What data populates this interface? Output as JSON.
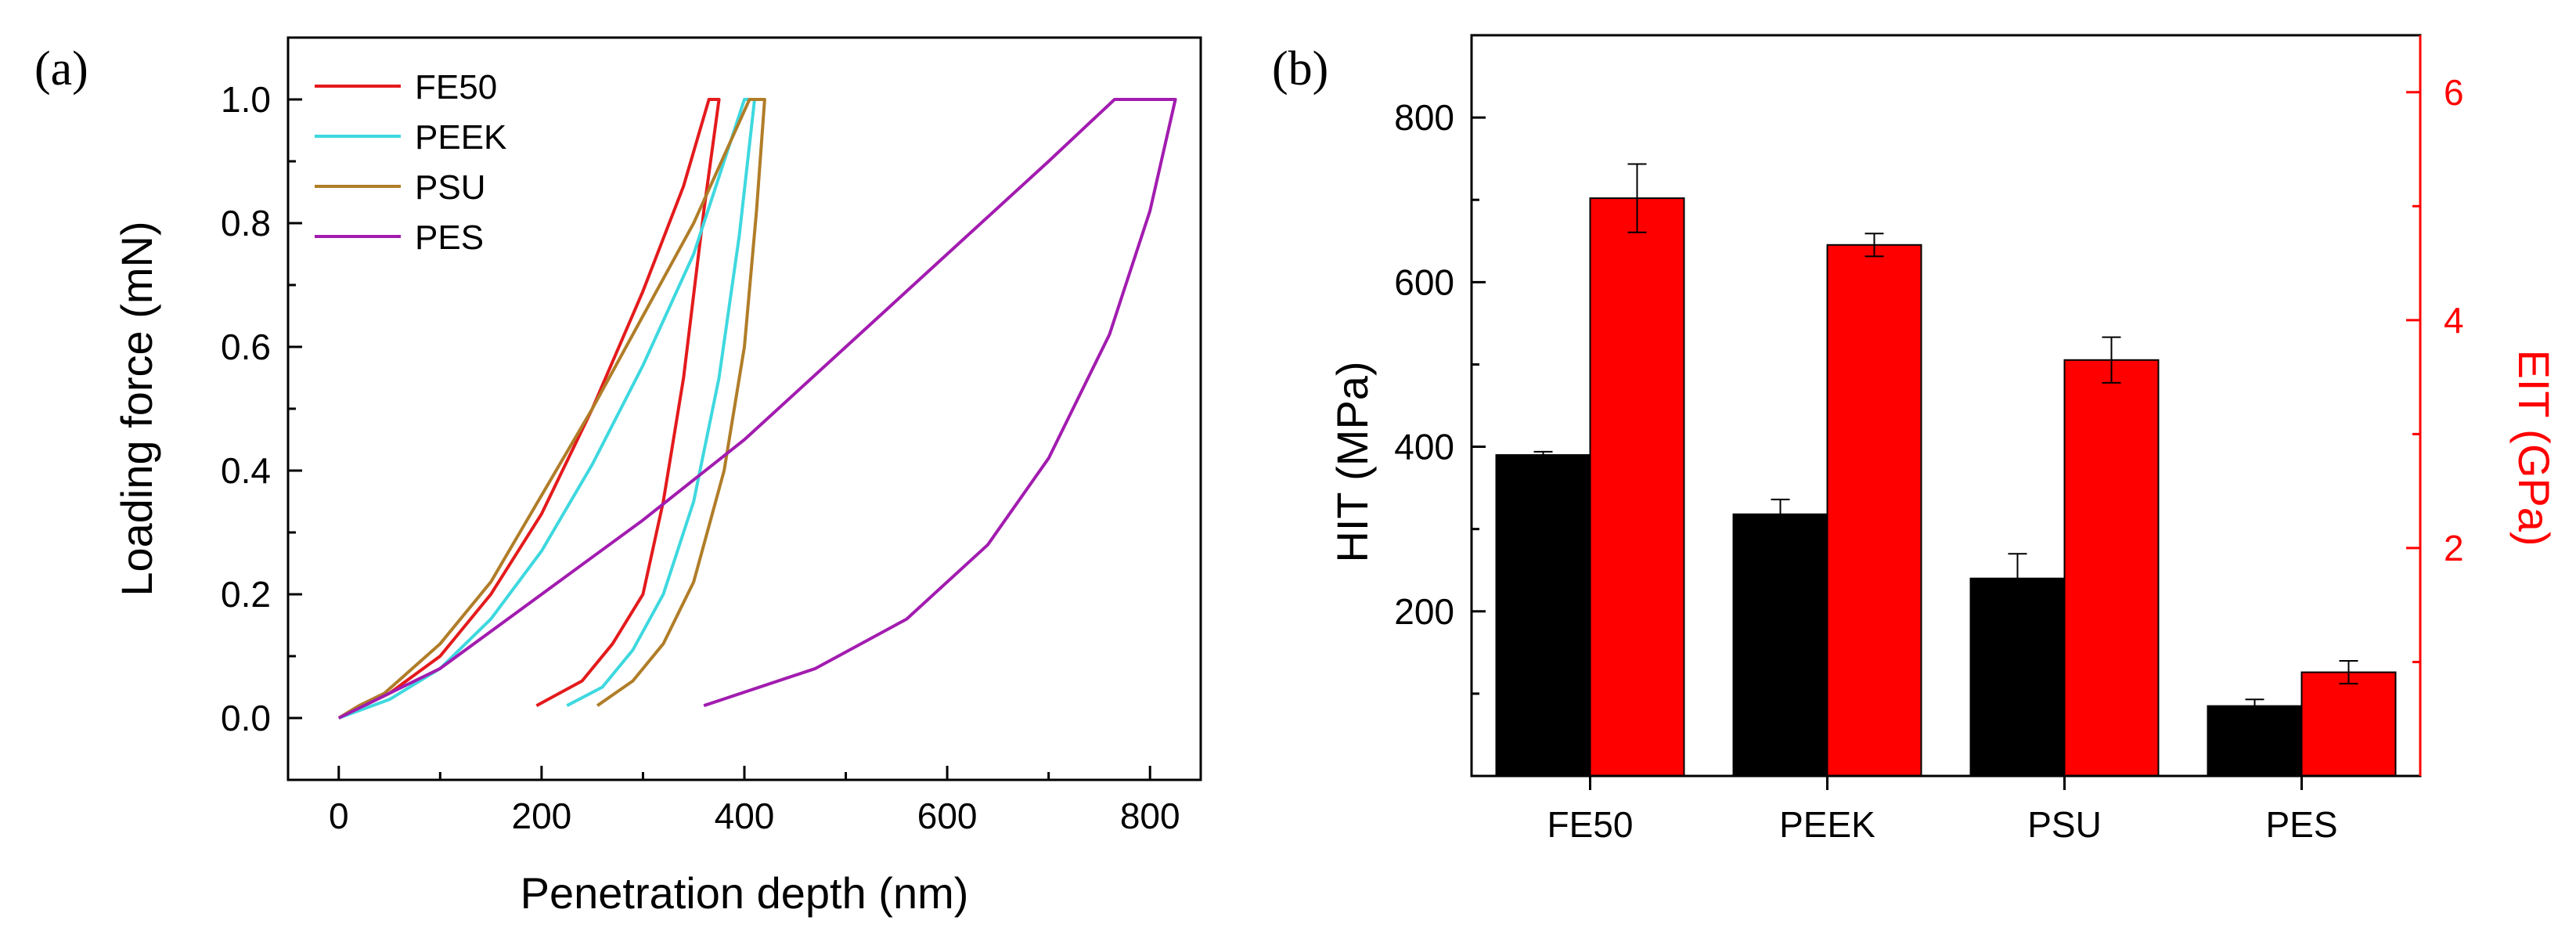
{
  "panels": {
    "a": {
      "label": "(a)",
      "chart_data": {
        "type": "line",
        "title": "",
        "xlabel": "Penetration depth (nm)",
        "ylabel": "Loading force (mN)",
        "xlim": [
          -50,
          850
        ],
        "ylim": [
          -0.1,
          1.1
        ],
        "xticks": [
          0,
          200,
          400,
          600,
          800
        ],
        "xtick_labels": [
          "0",
          "200",
          "400",
          "600",
          "800"
        ],
        "yticks": [
          0.0,
          0.2,
          0.4,
          0.6,
          0.8,
          1.0
        ],
        "ytick_labels": [
          "0.0",
          "0.2",
          "0.4",
          "0.6",
          "0.8",
          "1.0"
        ],
        "legend_position": "top-left",
        "series": [
          {
            "name": "FE50",
            "color": "#e41a1c",
            "loading": [
              [
                0,
                0
              ],
              [
                50,
                0.04
              ],
              [
                100,
                0.1
              ],
              [
                150,
                0.2
              ],
              [
                200,
                0.33
              ],
              [
                250,
                0.5
              ],
              [
                300,
                0.69
              ],
              [
                340,
                0.86
              ],
              [
                365,
                1.0
              ]
            ],
            "hold": [
              [
                365,
                1.0
              ],
              [
                375,
                1.0
              ]
            ],
            "unloading": [
              [
                375,
                1.0
              ],
              [
                360,
                0.82
              ],
              [
                340,
                0.55
              ],
              [
                320,
                0.35
              ],
              [
                300,
                0.2
              ],
              [
                270,
                0.12
              ],
              [
                240,
                0.06
              ],
              [
                195,
                0.02
              ]
            ]
          },
          {
            "name": "PEEK",
            "color": "#3ed8df",
            "loading": [
              [
                0,
                0
              ],
              [
                50,
                0.03
              ],
              [
                100,
                0.08
              ],
              [
                150,
                0.16
              ],
              [
                200,
                0.27
              ],
              [
                250,
                0.41
              ],
              [
                300,
                0.57
              ],
              [
                350,
                0.75
              ],
              [
                400,
                1.0
              ]
            ],
            "hold": [
              [
                400,
                1.0
              ],
              [
                410,
                1.0
              ]
            ],
            "unloading": [
              [
                410,
                1.0
              ],
              [
                395,
                0.78
              ],
              [
                375,
                0.55
              ],
              [
                350,
                0.35
              ],
              [
                320,
                0.2
              ],
              [
                290,
                0.11
              ],
              [
                260,
                0.05
              ],
              [
                225,
                0.02
              ]
            ]
          },
          {
            "name": "PSU",
            "color": "#b07d28",
            "loading": [
              [
                0,
                0
              ],
              [
                20,
                0.02
              ],
              [
                45,
                0.04
              ],
              [
                100,
                0.12
              ],
              [
                150,
                0.22
              ],
              [
                200,
                0.36
              ],
              [
                250,
                0.5
              ],
              [
                300,
                0.65
              ],
              [
                350,
                0.8
              ],
              [
                405,
                1.0
              ]
            ],
            "hold": [
              [
                405,
                1.0
              ],
              [
                420,
                1.0
              ]
            ],
            "unloading": [
              [
                420,
                1.0
              ],
              [
                412,
                0.82
              ],
              [
                400,
                0.6
              ],
              [
                380,
                0.4
              ],
              [
                350,
                0.22
              ],
              [
                320,
                0.12
              ],
              [
                290,
                0.06
              ],
              [
                255,
                0.02
              ]
            ]
          },
          {
            "name": "PES",
            "color": "#a21caf",
            "loading": [
              [
                0,
                0
              ],
              [
                100,
                0.08
              ],
              [
                200,
                0.2
              ],
              [
                300,
                0.32
              ],
              [
                400,
                0.45
              ],
              [
                500,
                0.6
              ],
              [
                600,
                0.75
              ],
              [
                700,
                0.9
              ],
              [
                765,
                1.0
              ]
            ],
            "hold": [
              [
                765,
                1.0
              ],
              [
                825,
                1.0
              ]
            ],
            "unloading": [
              [
                825,
                1.0
              ],
              [
                800,
                0.82
              ],
              [
                760,
                0.62
              ],
              [
                700,
                0.42
              ],
              [
                640,
                0.28
              ],
              [
                560,
                0.16
              ],
              [
                470,
                0.08
              ],
              [
                360,
                0.02
              ]
            ]
          }
        ]
      }
    },
    "b": {
      "label": "(b)",
      "chart_data": {
        "type": "bar",
        "title": "",
        "categories": [
          "FE50",
          "PEEK",
          "PSU",
          "PES"
        ],
        "xlabel": "",
        "ylabel_left": "HIT (MPa)",
        "ylabel_right": "EIT (GPa)",
        "ylim_left": [
          0,
          900
        ],
        "ylim_right": [
          0,
          6.5
        ],
        "yticks_left": [
          200,
          400,
          600,
          800
        ],
        "ytick_labels_left": [
          "200",
          "400",
          "600",
          "800"
        ],
        "yticks_right": [
          2,
          4,
          6
        ],
        "ytick_labels_right": [
          "2",
          "4",
          "6"
        ],
        "series": [
          {
            "name": "HIT",
            "axis": "left",
            "color": "#000000",
            "values": [
              390,
              318,
              240,
              85
            ],
            "errors": [
              4,
              18,
              30,
              8
            ]
          },
          {
            "name": "EIT",
            "axis": "right",
            "color": "#ff0000",
            "values": [
              5.07,
              4.66,
              3.65,
              0.91
            ],
            "errors": [
              0.3,
              0.1,
              0.2,
              0.1
            ]
          }
        ],
        "right_axis_color": "#ff0000"
      }
    }
  }
}
